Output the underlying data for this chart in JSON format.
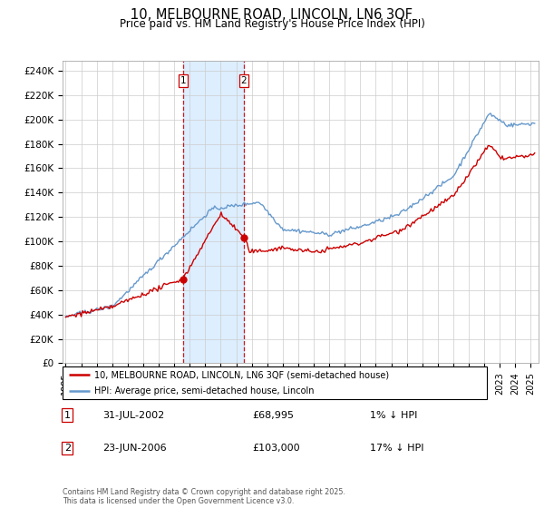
{
  "title": "10, MELBOURNE ROAD, LINCOLN, LN6 3QF",
  "subtitle": "Price paid vs. HM Land Registry's House Price Index (HPI)",
  "ylabel_ticks": [
    "£0",
    "£20K",
    "£40K",
    "£60K",
    "£80K",
    "£100K",
    "£120K",
    "£140K",
    "£160K",
    "£180K",
    "£200K",
    "£220K",
    "£240K"
  ],
  "ylim": [
    0,
    248000
  ],
  "xlim_start": 1994.8,
  "xlim_end": 2025.5,
  "legend_line1": "10, MELBOURNE ROAD, LINCOLN, LN6 3QF (semi-detached house)",
  "legend_line2": "HPI: Average price, semi-detached house, Lincoln",
  "sale1_date": 2002.58,
  "sale1_price": 68995,
  "sale2_date": 2006.48,
  "sale2_price": 103000,
  "annotation1_date": "31-JUL-2002",
  "annotation1_price": "£68,995",
  "annotation1_pct": "1% ↓ HPI",
  "annotation2_date": "23-JUN-2006",
  "annotation2_price": "£103,000",
  "annotation2_pct": "17% ↓ HPI",
  "footer": "Contains HM Land Registry data © Crown copyright and database right 2025.\nThis data is licensed under the Open Government Licence v3.0.",
  "hpi_color": "#6699cc",
  "price_color": "#cc0000",
  "highlight_color": "#ddeeff",
  "vline_color": "#cc0000"
}
